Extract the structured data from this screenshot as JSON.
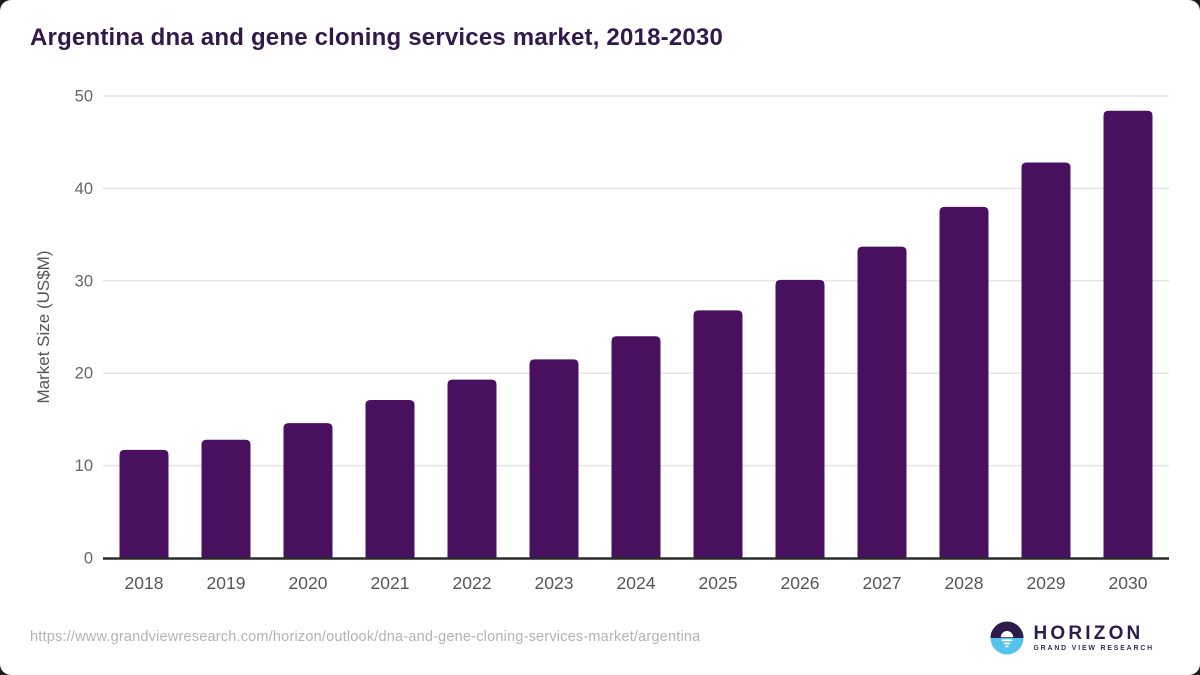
{
  "title": "Argentina dna and gene cloning services market, 2018-2030",
  "chart_data": {
    "type": "bar",
    "categories": [
      "2018",
      "2019",
      "2020",
      "2021",
      "2022",
      "2023",
      "2024",
      "2025",
      "2026",
      "2027",
      "2028",
      "2029",
      "2030"
    ],
    "values": [
      11.7,
      12.8,
      14.6,
      17.1,
      19.3,
      21.5,
      24.0,
      26.8,
      30.1,
      33.7,
      38.0,
      42.8,
      48.4
    ],
    "title": "Argentina dna and gene cloning services market, 2018-2030",
    "xlabel": "",
    "ylabel": "Market Size (US$M)",
    "ylim": [
      0,
      50
    ],
    "yticks": [
      0,
      10,
      20,
      30,
      40,
      50
    ],
    "grid": true,
    "legend": false,
    "bar_color": "#4a1060"
  },
  "colors": {
    "bar": "#4a1060",
    "title_text": "#33194b",
    "tick_text": "#666666",
    "category_text": "#565656",
    "gridline": "#e4e4e4",
    "axis_line": "#2b2b2b",
    "url_text": "#b3b3b3",
    "logo_purple": "#2d1b4e",
    "logo_blue": "#55c3eb"
  },
  "footer": {
    "source_url": "https://www.grandviewresearch.com/horizon/outlook/dna-and-gene-cloning-services-market/argentina",
    "logo": {
      "brand": "HORIZON",
      "sub_brand": "GRAND VIEW RESEARCH"
    }
  }
}
